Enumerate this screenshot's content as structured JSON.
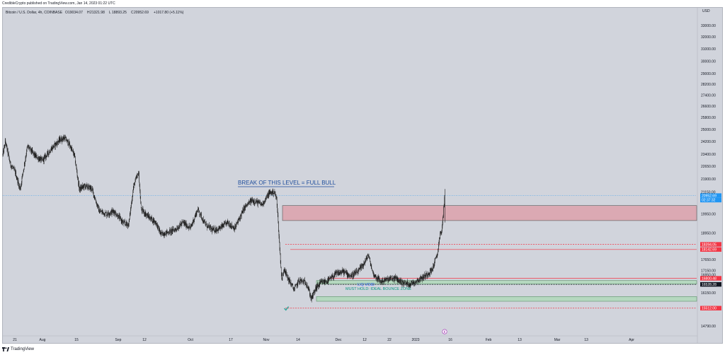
{
  "header": {
    "credit": "CredibleCrypto published on TradingView.com, Jan 14, 2023 01:22 UTC",
    "symbol_line": "Bitcoin / U.S. Dollar, 4h, COINBASE",
    "ohlc": [
      {
        "key": "O",
        "value": "19034.07"
      },
      {
        "key": "H",
        "value": "21321.98"
      },
      {
        "key": "L",
        "value": "18893.25"
      },
      {
        "key": "C",
        "value": "20952.69"
      }
    ],
    "change": "+1017.80 (+5.11%)"
  },
  "footer": {
    "brand": "TradingView"
  },
  "colors": {
    "background": "#d1d4dc",
    "candle": "#1e1e1e",
    "resistance_zone": "#dba9b3",
    "support_zone": "#b5d8bf",
    "red_line": "#f23645",
    "blue_text": "#2962ff",
    "teal_text": "#089981",
    "current_price": "#2196f3"
  },
  "chart_data": {
    "type": "candlestick",
    "symbol": "Bitcoin / U.S. Dollar",
    "timeframe": "4h",
    "exchange": "COINBASE",
    "currency_label": "USD",
    "y_axis": {
      "scale": "log",
      "ticks": [
        "33000.00",
        "32000.00",
        "31000.00",
        "30000.00",
        "29000.00",
        "28200.00",
        "27400.00",
        "26600.00",
        "25800.00",
        "25000.00",
        "24200.00",
        "23400.00",
        "22650.00",
        "21900.00",
        "21150.00",
        "19950.00",
        "18950.00",
        "17650.00",
        "17150.00",
        "16950.00",
        "16150.00",
        "14790.00"
      ]
    },
    "x_axis": {
      "ticks": [
        "21",
        "Aug",
        "15",
        "Sep",
        "12",
        "Oct",
        "17",
        "Nov",
        "14",
        "Dec",
        "12",
        "22",
        "2023",
        "16",
        "Feb",
        "13",
        "Mar",
        "13",
        "Apr"
      ]
    },
    "series": [
      {
        "points": [
          [
            "Jul 19",
            23350
          ],
          [
            "Jul 20",
            24200
          ],
          [
            "Jul 22",
            22800
          ],
          [
            "Jul 24",
            22300
          ],
          [
            "Jul 26",
            21300
          ],
          [
            "Jul 29",
            23900
          ],
          [
            "Aug 1",
            23300
          ],
          [
            "Aug 4",
            23000
          ],
          [
            "Aug 8",
            23800
          ],
          [
            "Aug 11",
            24300
          ],
          [
            "Aug 13",
            24450
          ],
          [
            "Aug 15",
            24000
          ],
          [
            "Aug 17",
            23300
          ],
          [
            "Aug 19",
            21300
          ],
          [
            "Aug 21",
            21500
          ],
          [
            "Aug 24",
            21350
          ],
          [
            "Aug 27",
            20100
          ],
          [
            "Aug 30",
            19950
          ],
          [
            "Sep 2",
            20100
          ],
          [
            "Sep 6",
            19450
          ],
          [
            "Sep 8",
            19400
          ],
          [
            "Sep 10",
            21500
          ],
          [
            "Sep 12",
            22300
          ],
          [
            "Sep 13",
            20200
          ],
          [
            "Sep 16",
            19800
          ],
          [
            "Sep 19",
            19500
          ],
          [
            "Sep 21",
            18900
          ],
          [
            "Sep 24",
            19000
          ],
          [
            "Sep 27",
            19150
          ],
          [
            "Sep 30",
            19500
          ],
          [
            "Oct 3",
            19200
          ],
          [
            "Oct 6",
            20200
          ],
          [
            "Oct 9",
            19400
          ],
          [
            "Oct 12",
            19100
          ],
          [
            "Oct 15",
            19200
          ],
          [
            "Oct 18",
            19500
          ],
          [
            "Oct 21",
            19200
          ],
          [
            "Oct 25",
            20300
          ],
          [
            "Oct 28",
            20700
          ],
          [
            "Nov 1",
            20450
          ],
          [
            "Nov 4",
            21100
          ],
          [
            "Nov 6",
            21150
          ],
          [
            "Nov 7",
            20700
          ],
          [
            "Nov 8",
            18500
          ],
          [
            "Nov 9",
            16700
          ],
          [
            "Nov 10",
            17300
          ],
          [
            "Nov 11",
            16900
          ],
          [
            "Nov 14",
            16300
          ],
          [
            "Nov 16",
            16700
          ],
          [
            "Nov 19",
            16600
          ],
          [
            "Nov 21",
            15900
          ],
          [
            "Nov 23",
            16400
          ],
          [
            "Nov 25",
            16600
          ],
          [
            "Nov 28",
            16700
          ],
          [
            "Dec 1",
            17000
          ],
          [
            "Dec 4",
            17100
          ],
          [
            "Dec 7",
            16900
          ],
          [
            "Dec 10",
            17100
          ],
          [
            "Dec 13",
            17600
          ],
          [
            "Dec 14",
            17900
          ],
          [
            "Dec 16",
            17000
          ],
          [
            "Dec 19",
            16650
          ],
          [
            "Dec 22",
            16750
          ],
          [
            "Dec 25",
            16800
          ],
          [
            "Dec 28",
            16600
          ],
          [
            "Dec 31",
            16550
          ],
          [
            "Jan 3",
            16700
          ],
          [
            "Jan 6",
            16900
          ],
          [
            "Jan 9",
            17200
          ],
          [
            "Jan 11",
            17900
          ],
          [
            "Jan 12",
            18800
          ],
          [
            "Jan 13",
            19200
          ],
          [
            "Jan 14",
            20952.69
          ]
        ]
      }
    ],
    "current_price": {
      "value": "20952.69",
      "countdown": "02:37:32"
    },
    "zones": [
      {
        "kind": "resistance",
        "low": 19600,
        "high": 20400
      },
      {
        "kind": "support-upper",
        "low": 16540,
        "high": 16700
      },
      {
        "kind": "support-lower",
        "low": 15800,
        "high": 16000
      }
    ],
    "levels": [
      {
        "value": "18394.05",
        "color": "#f23645",
        "dashed": true
      },
      {
        "value": "18142.69",
        "color": "#f23645",
        "dashed": false
      },
      {
        "value": "16800.48",
        "color": "#f23645",
        "dashed": false
      },
      {
        "value": "16528.28",
        "color": "#131722",
        "dashed": true
      },
      {
        "value": "15512.00",
        "color": "#f23645",
        "dashed": true
      }
    ],
    "annotations": [
      {
        "text": "BREAK OF THIS LEVEL = FULL BULL",
        "color": "#1e4d9c"
      },
      {
        "text": "LIQ VOID",
        "color": "#2962ff"
      },
      {
        "text": "MUST HOLD: IDEAL BOUNCE ZONE",
        "color": "#089981"
      }
    ]
  }
}
